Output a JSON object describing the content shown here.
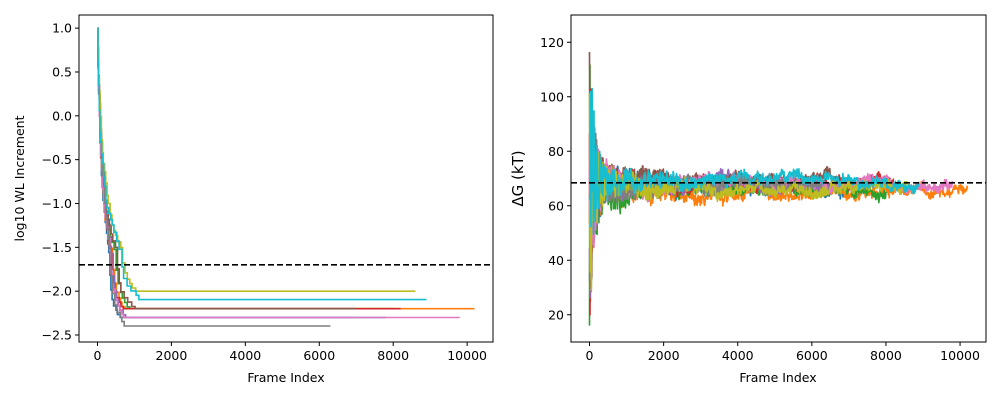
{
  "chart_data": [
    {
      "type": "line",
      "title": "",
      "xlabel": "Frame Index",
      "ylabel": "log10 WL Increment",
      "xlim": [
        -500,
        10700
      ],
      "ylim": [
        -2.58,
        1.15
      ],
      "xticks": [
        0,
        2000,
        4000,
        6000,
        8000,
        10000
      ],
      "yticks": [
        -2.5,
        -2.0,
        -1.5,
        -1.0,
        -0.5,
        0.0,
        0.5,
        1.0
      ],
      "xtick_labels": [
        "0",
        "2000",
        "4000",
        "6000",
        "8000",
        "10000"
      ],
      "ytick_labels": [
        "−2.5",
        "−2.0",
        "−1.5",
        "−1.0",
        "−0.5",
        "0.0",
        "0.5",
        "1.0"
      ],
      "reference_line": {
        "axis": "y",
        "value": -1.7,
        "style": "dashed",
        "color": "#000000"
      },
      "series": [
        {
          "color": "#1f77b4",
          "end_frame": 7800,
          "final_value": -2.3,
          "start_value": 1.0,
          "decay_rate": 1.0
        },
        {
          "color": "#ff7f0e",
          "end_frame": 10200,
          "final_value": -2.2,
          "start_value": 1.0,
          "decay_rate": 0.85
        },
        {
          "color": "#2ca02c",
          "end_frame": 8000,
          "final_value": -2.2,
          "start_value": 1.0,
          "decay_rate": 1.05
        },
        {
          "color": "#d62728",
          "end_frame": 8200,
          "final_value": -2.2,
          "start_value": 1.0,
          "decay_rate": 0.95
        },
        {
          "color": "#9467bd",
          "end_frame": 6900,
          "final_value": -2.3,
          "start_value": 1.0,
          "decay_rate": 1.1
        },
        {
          "color": "#8c564b",
          "end_frame": 7000,
          "final_value": -2.2,
          "start_value": 1.0,
          "decay_rate": 1.0
        },
        {
          "color": "#e377c2",
          "end_frame": 9800,
          "final_value": -2.3,
          "start_value": 1.0,
          "decay_rate": 0.95
        },
        {
          "color": "#7f7f7f",
          "end_frame": 6300,
          "final_value": -2.4,
          "start_value": 1.0,
          "decay_rate": 1.1
        },
        {
          "color": "#bcbd22",
          "end_frame": 8600,
          "final_value": -2.0,
          "start_value": 1.0,
          "decay_rate": 0.9
        },
        {
          "color": "#17becf",
          "end_frame": 8900,
          "final_value": -2.1,
          "start_value": 1.0,
          "decay_rate": 1.0
        }
      ]
    },
    {
      "type": "line",
      "title": "",
      "xlabel": "Frame Index",
      "ylabel": "ΔG (kT)",
      "xlim": [
        -500,
        10700
      ],
      "ylim": [
        10,
        130
      ],
      "xticks": [
        0,
        2000,
        4000,
        6000,
        8000,
        10000
      ],
      "yticks": [
        20,
        40,
        60,
        80,
        100,
        120
      ],
      "xtick_labels": [
        "0",
        "2000",
        "4000",
        "6000",
        "8000",
        "10000"
      ],
      "ytick_labels": [
        "20",
        "40",
        "60",
        "80",
        "100",
        "120"
      ],
      "reference_line": {
        "axis": "y",
        "value": 68.4,
        "style": "dashed",
        "color": "#000000"
      },
      "series": [
        {
          "color": "#1f77b4",
          "end_frame": 7800,
          "converged_value": 67
        },
        {
          "color": "#ff7f0e",
          "end_frame": 10200,
          "converged_value": 65
        },
        {
          "color": "#2ca02c",
          "end_frame": 8000,
          "converged_value": 66
        },
        {
          "color": "#d62728",
          "end_frame": 8200,
          "converged_value": 69
        },
        {
          "color": "#9467bd",
          "end_frame": 6900,
          "converged_value": 68
        },
        {
          "color": "#8c564b",
          "end_frame": 7000,
          "converged_value": 70
        },
        {
          "color": "#e377c2",
          "end_frame": 9800,
          "converged_value": 68
        },
        {
          "color": "#7f7f7f",
          "end_frame": 6300,
          "converged_value": 68
        },
        {
          "color": "#bcbd22",
          "end_frame": 8600,
          "converged_value": 67
        },
        {
          "color": "#17becf",
          "end_frame": 8900,
          "converged_value": 69
        }
      ]
    }
  ]
}
